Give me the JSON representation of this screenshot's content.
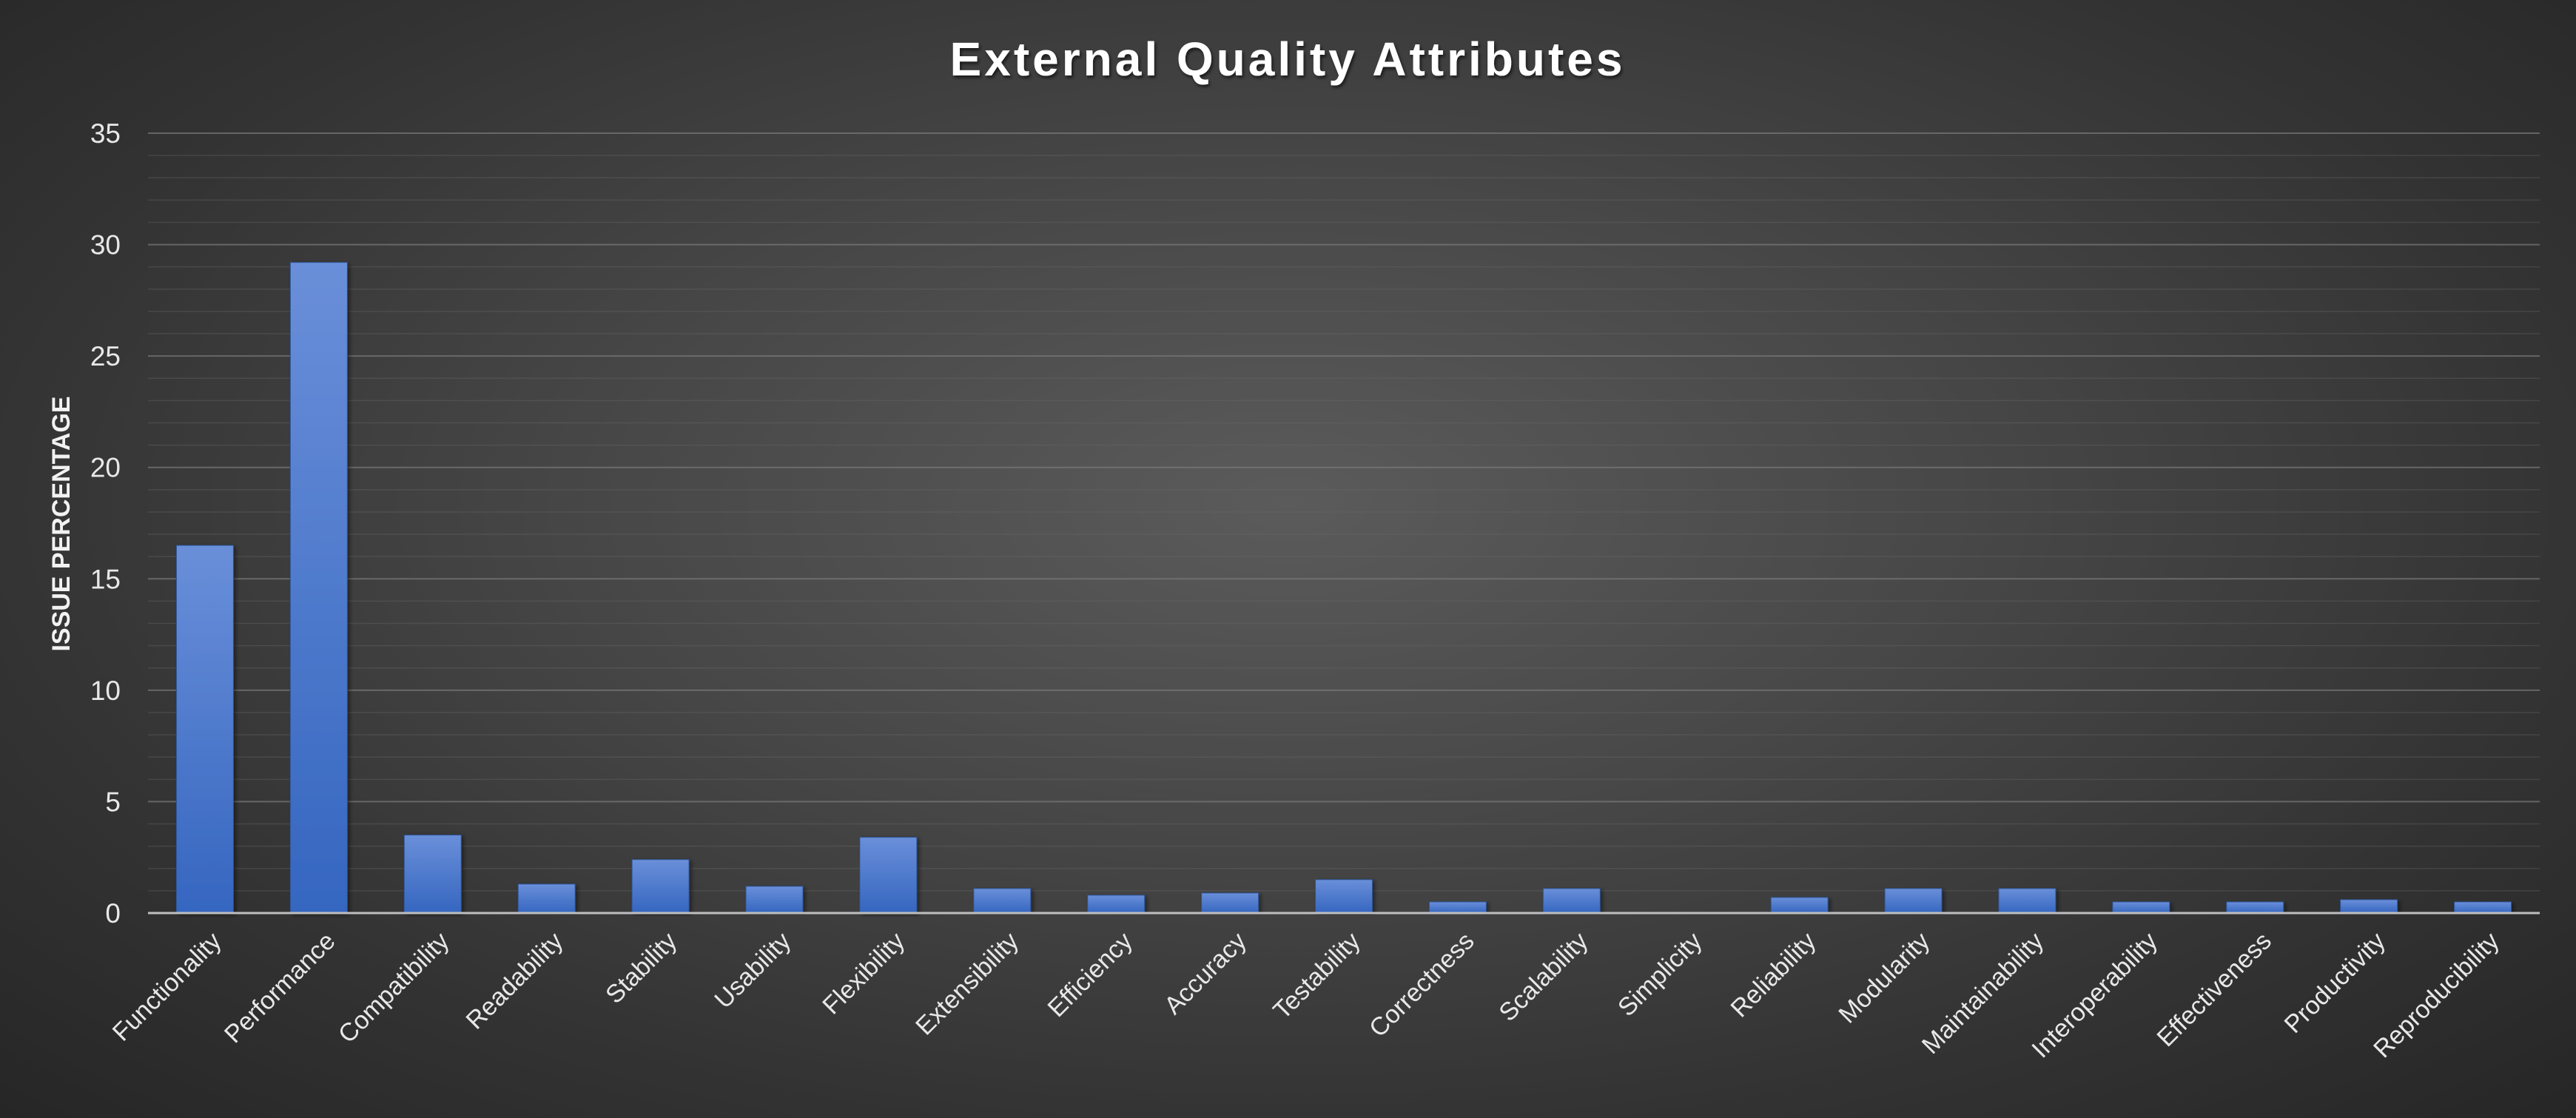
{
  "chart_data": {
    "type": "bar",
    "title": "External Quality Attributes",
    "xlabel": "",
    "ylabel": "ISSUE PERCENTAGE",
    "ylim": [
      0,
      35
    ],
    "yticks": [
      "0",
      "5",
      "10",
      "15",
      "20",
      "25",
      "30",
      "35"
    ],
    "grid": true,
    "legend": "none",
    "bar_color": "#4472C4",
    "categories": [
      "Functionality",
      "Performance",
      "Compatibility",
      "Readability",
      "Stability",
      "Usability",
      "Flexibility",
      "Extensibility",
      "Efficiency",
      "Accuracy",
      "Testability",
      "Correctness",
      "Scalability",
      "Simplicity",
      "Reliability",
      "Modularity",
      "Maintainability",
      "Interoperability",
      "Effectiveness",
      "Productivity",
      "Reproducibility"
    ],
    "values": [
      16.5,
      29.2,
      3.5,
      1.3,
      2.4,
      1.2,
      3.4,
      1.1,
      0.8,
      0.9,
      1.5,
      0.5,
      1.1,
      0,
      0.7,
      1.1,
      1.1,
      0.5,
      0.5,
      0.6,
      0.5
    ]
  }
}
